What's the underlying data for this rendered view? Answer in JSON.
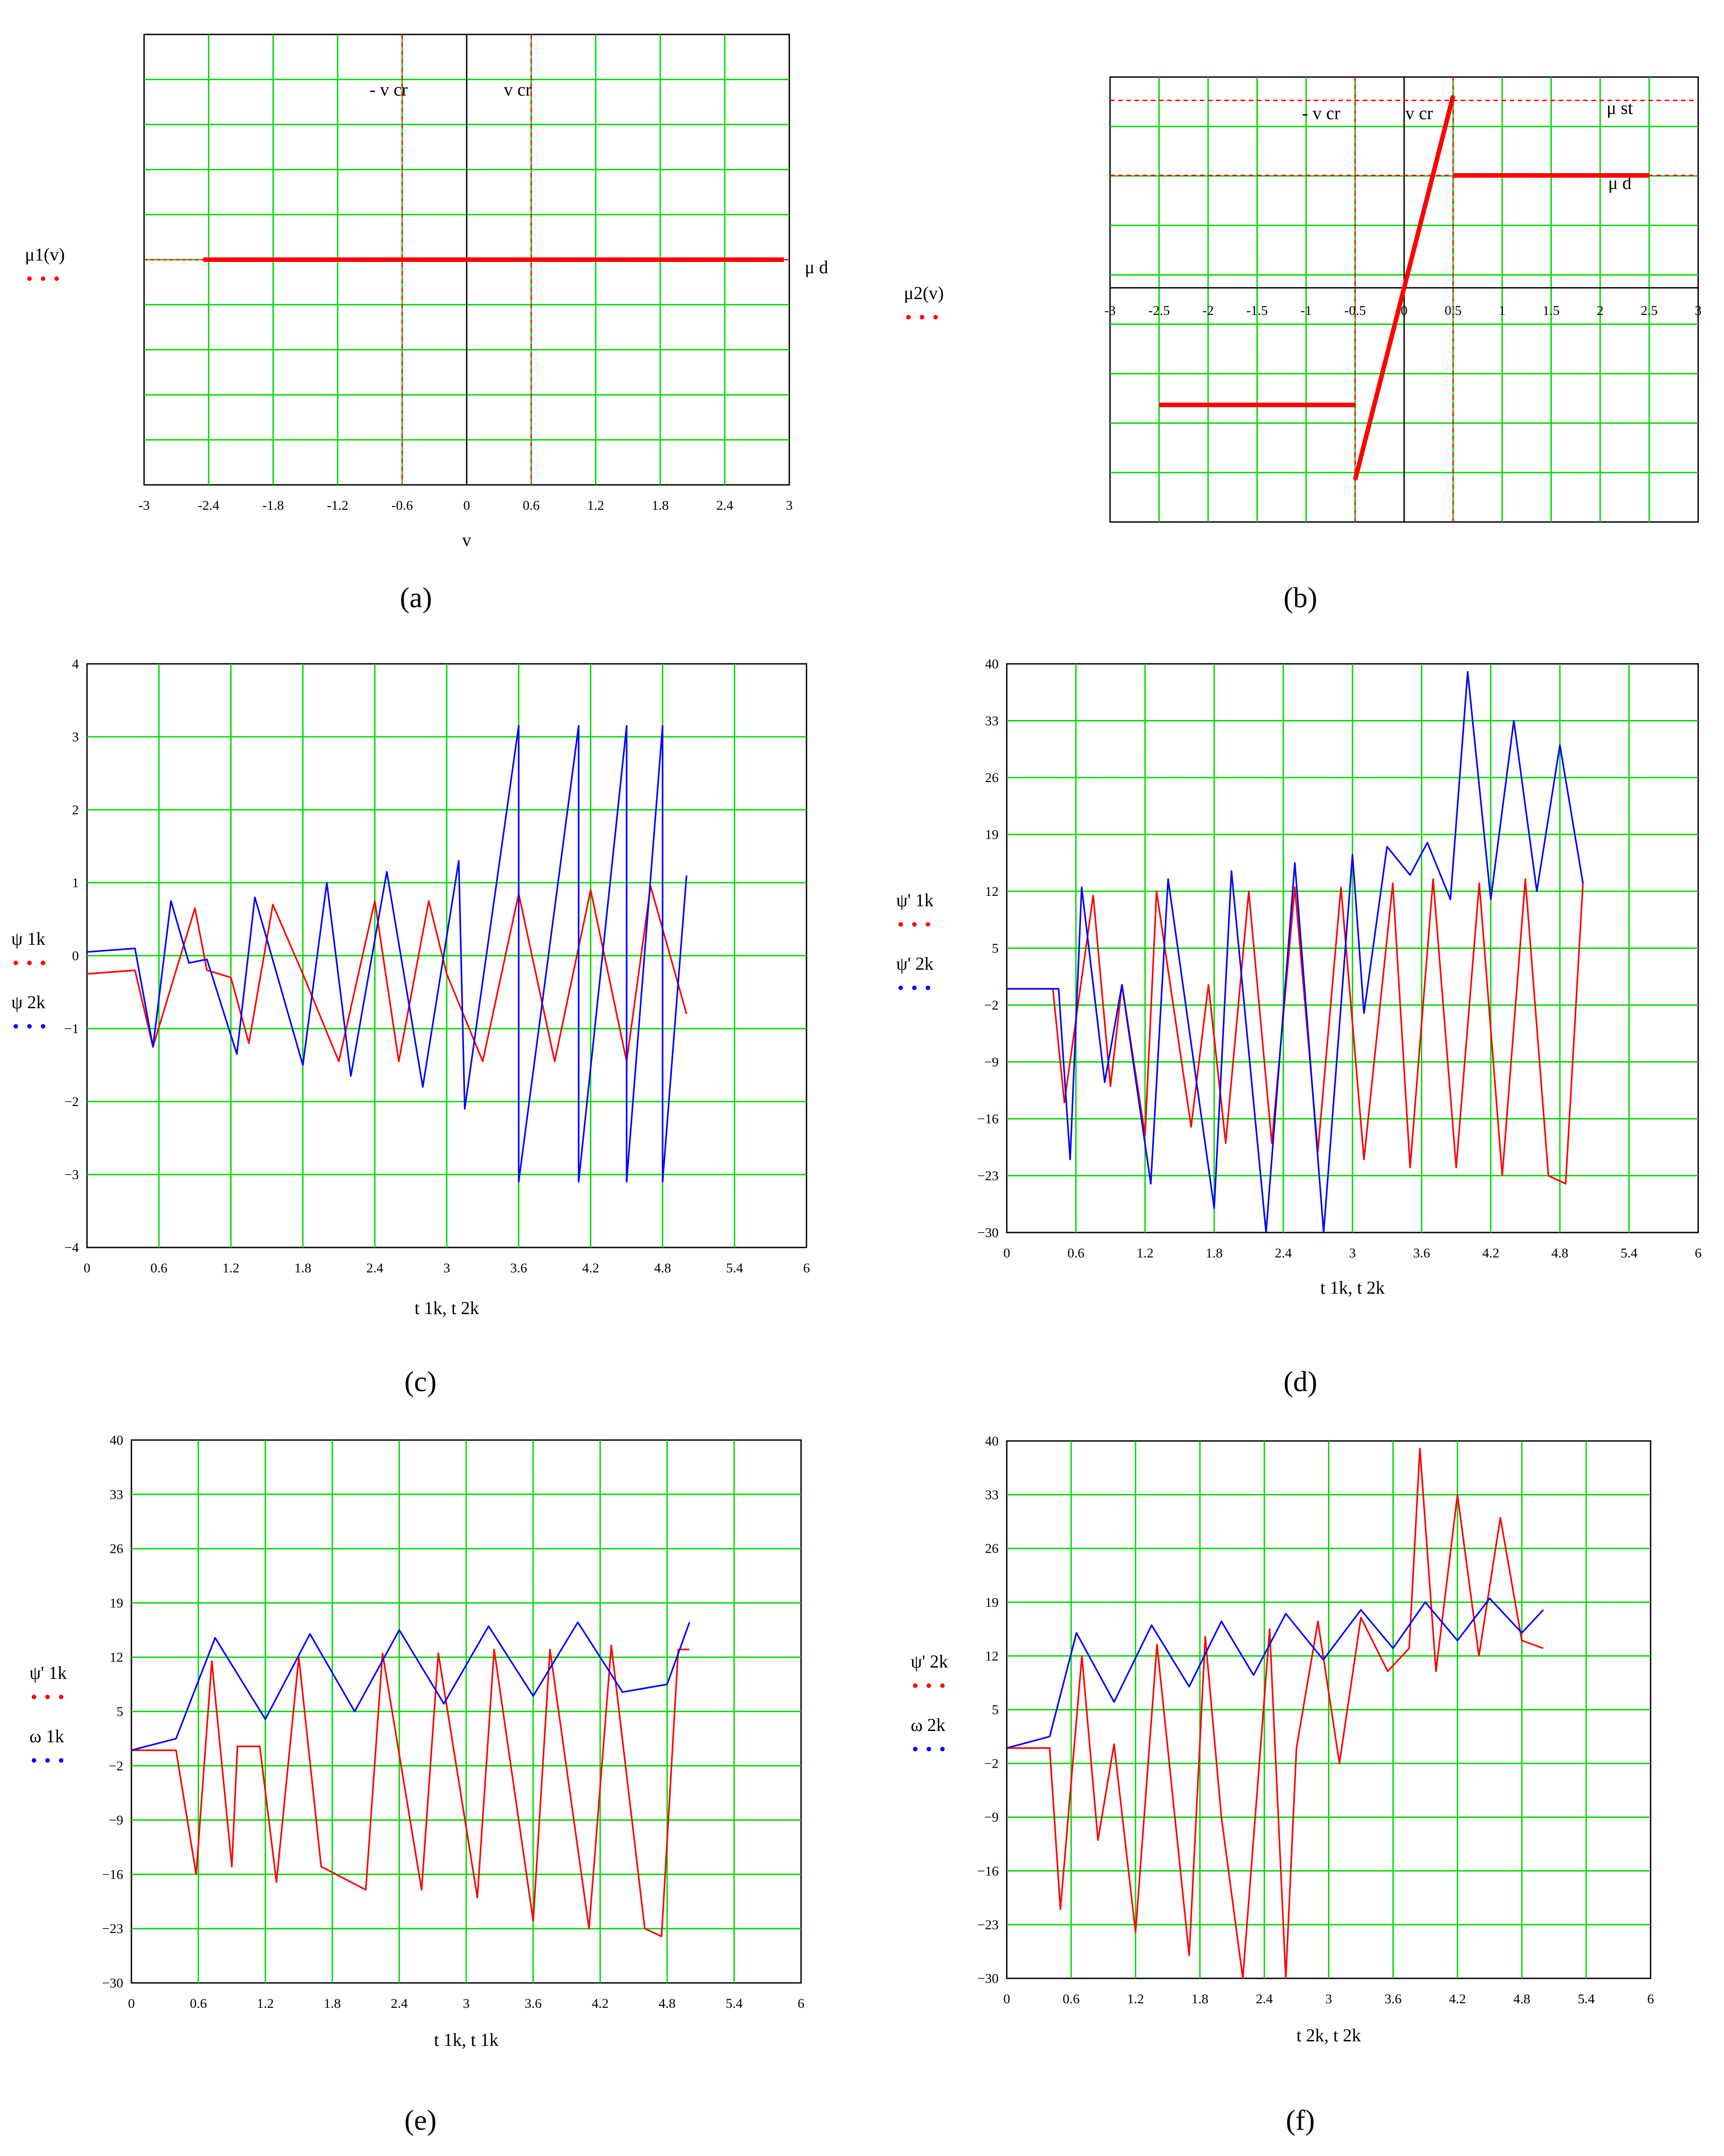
{
  "figure": {
    "captions": [
      "(a)",
      "(b)",
      "(c)",
      "(d)",
      "(e)",
      "(f)"
    ],
    "caption_letters": [
      "a",
      "b",
      "c",
      "d",
      "e",
      "f"
    ]
  },
  "chart_data": [
    {
      "id": "a",
      "type": "line",
      "caption": "(a)",
      "xlabel": "v",
      "legend": [
        {
          "label": "μ1(v)",
          "color": "#ff0000"
        }
      ],
      "xlim": [
        -3,
        3
      ],
      "ylim": [
        -5,
        5
      ],
      "xticks": [
        -3,
        -2.4,
        -1.8,
        -1.2,
        -0.6,
        0,
        0.6,
        1.2,
        1.8,
        2.4,
        3
      ],
      "xtick_labels": [
        "-3",
        "-2.4",
        "-1.8",
        "-1.2",
        "-0.6",
        "0",
        "0.6",
        "1.2",
        "1.8",
        "2.4",
        "3"
      ],
      "ygrid": [
        -5,
        -4,
        -3,
        -2,
        -1,
        0,
        1,
        2,
        3,
        4,
        5
      ],
      "vlines": [
        {
          "x": -0.6,
          "label": "- v cr"
        },
        {
          "x": 0.6,
          "label": "v cr"
        }
      ],
      "annotations": [
        {
          "text": "μ d",
          "x": 3.1,
          "y": 0
        }
      ],
      "series": [
        {
          "name": "μ1(v)",
          "color": "#ff0000",
          "x": [
            -3,
            -2.45,
            2.95,
            3.05
          ],
          "y": [
            0,
            0,
            0,
            0
          ],
          "segments": [
            [
              -2.45,
              2.95
            ]
          ]
        }
      ]
    },
    {
      "id": "b",
      "type": "line",
      "caption": "(b)",
      "legend": [
        {
          "label": "μ2(v)",
          "color": "#ff0000"
        }
      ],
      "xlim": [
        -3,
        3
      ],
      "ylim": [
        -5,
        4.5
      ],
      "xticks": [
        -3,
        -2.5,
        -2,
        -1.5,
        -1,
        -0.5,
        0,
        0.5,
        1,
        1.5,
        2,
        2.5,
        3
      ],
      "xtick_labels": [
        "-3",
        "-2.5",
        "-2",
        "-1.5",
        "-1",
        "-0.5",
        "0",
        "0.5",
        "1",
        "1.5",
        "2",
        "2.5",
        "3"
      ],
      "hlines": [
        {
          "y": 4,
          "label": "μ st"
        },
        {
          "y": 2.4,
          "label": "μ d"
        }
      ],
      "vlines": [
        {
          "x": -0.5,
          "label": "- v cr"
        },
        {
          "x": 0.5,
          "label": "v cr"
        }
      ],
      "series": [
        {
          "name": "μ2(v)",
          "color": "#ff0000",
          "x": [
            -2.5,
            -0.5,
            -0.5,
            0.5,
            0.5,
            2.5
          ],
          "y": [
            -2.5,
            -2.5,
            -4.1,
            4.1,
            2.4,
            2.4
          ]
        }
      ]
    },
    {
      "id": "c",
      "type": "line",
      "caption": "(c)",
      "xlabel": "t 1k, t 2k",
      "legend": [
        {
          "label": "ψ 1k",
          "color": "#ff0000"
        },
        {
          "label": "ψ 2k",
          "color": "#0000ff"
        }
      ],
      "xlim": [
        0,
        6
      ],
      "ylim": [
        -4,
        4
      ],
      "xticks": [
        0,
        0.6,
        1.2,
        1.8,
        2.4,
        3,
        3.6,
        4.2,
        4.8,
        5.4,
        6
      ],
      "xtick_labels": [
        "0",
        "0.6",
        "1.2",
        "1.8",
        "2.4",
        "3",
        "3.6",
        "4.2",
        "4.8",
        "5.4",
        "6"
      ],
      "yticks": [
        -4,
        -3,
        -2,
        -1,
        0,
        1,
        2,
        3,
        4
      ],
      "ytick_labels": [
        "−4",
        "−3",
        "−2",
        "−1",
        "0",
        "1",
        "2",
        "3",
        "4"
      ],
      "series": [
        {
          "name": "ψ 1k",
          "color": "#ff0000",
          "x": [
            0,
            0.4,
            0.55,
            0.9,
            1.0,
            1.2,
            1.35,
            1.55,
            1.8,
            2.1,
            2.4,
            2.6,
            2.85,
            3.0,
            3.3,
            3.6,
            3.9,
            4.2,
            4.5,
            4.7,
            5.0
          ],
          "y": [
            -0.25,
            -0.2,
            -1.25,
            0.65,
            -0.2,
            -0.3,
            -1.2,
            0.7,
            -0.25,
            -1.45,
            0.75,
            -1.45,
            0.75,
            -0.25,
            -1.45,
            0.85,
            -1.45,
            0.9,
            -1.45,
            0.95,
            -0.8
          ]
        },
        {
          "name": "ψ 2k",
          "color": "#0000ff",
          "x": [
            0,
            0.4,
            0.55,
            0.7,
            0.85,
            1.0,
            1.25,
            1.4,
            1.8,
            2.0,
            2.2,
            2.5,
            2.8,
            3.1,
            3.15,
            3.6,
            3.6,
            4.1,
            4.1,
            4.5,
            4.5,
            4.8,
            4.8,
            5.0
          ],
          "y": [
            0.05,
            0.1,
            -1.25,
            0.75,
            -0.1,
            -0.05,
            -1.35,
            0.8,
            -1.5,
            1.0,
            -1.65,
            1.15,
            -1.8,
            1.3,
            -2.1,
            3.15,
            -3.1,
            3.15,
            -3.1,
            3.15,
            -3.1,
            3.15,
            -3.1,
            1.1
          ]
        }
      ]
    },
    {
      "id": "d",
      "type": "line",
      "caption": "(d)",
      "xlabel": "t 1k, t 2k",
      "legend": [
        {
          "label": "ψ' 1k",
          "color": "#ff0000"
        },
        {
          "label": "ψ' 2k",
          "color": "#0000ff"
        }
      ],
      "xlim": [
        0,
        6
      ],
      "ylim": [
        -30,
        40
      ],
      "xticks": [
        0,
        0.6,
        1.2,
        1.8,
        2.4,
        3,
        3.6,
        4.2,
        4.8,
        5.4,
        6
      ],
      "xtick_labels": [
        "0",
        "0.6",
        "1.2",
        "1.8",
        "2.4",
        "3",
        "3.6",
        "4.2",
        "4.8",
        "5.4",
        "6"
      ],
      "yticks": [
        -30,
        -23,
        -16,
        -9,
        -2,
        5,
        12,
        19,
        26,
        33,
        40
      ],
      "ytick_labels": [
        "−30",
        "−23",
        "−16",
        "−9",
        "−2",
        "5",
        "12",
        "19",
        "26",
        "33",
        "40"
      ],
      "series": [
        {
          "name": "ψ' 1k",
          "color": "#ff0000",
          "x": [
            0,
            0.4,
            0.5,
            0.75,
            0.9,
            1.0,
            1.2,
            1.3,
            1.6,
            1.75,
            1.9,
            2.1,
            2.3,
            2.5,
            2.7,
            2.9,
            3.1,
            3.35,
            3.5,
            3.7,
            3.9,
            4.1,
            4.3,
            4.5,
            4.7,
            4.85,
            5.0
          ],
          "y": [
            0,
            0,
            -14,
            11.5,
            -12,
            0.5,
            -18,
            12,
            -17,
            0.5,
            -19,
            12,
            -19,
            12.5,
            -20,
            12.5,
            -21,
            13,
            -22,
            13.5,
            -22,
            13,
            -23,
            13.5,
            -23,
            -24,
            13
          ]
        },
        {
          "name": "ψ' 2k",
          "color": "#0000ff",
          "x": [
            0,
            0.45,
            0.55,
            0.65,
            0.85,
            1.0,
            1.25,
            1.4,
            1.8,
            1.95,
            2.25,
            2.5,
            2.75,
            3.0,
            3.1,
            3.3,
            3.5,
            3.65,
            3.85,
            4.0,
            4.2,
            4.4,
            4.6,
            4.8,
            5.0
          ],
          "y": [
            0,
            0,
            -21,
            12.5,
            -11.5,
            0.5,
            -24,
            13.5,
            -27,
            14.5,
            -30,
            15.5,
            -30,
            16.5,
            -3,
            17.5,
            14,
            18,
            11,
            39,
            11,
            33,
            12,
            30,
            13
          ]
        }
      ]
    },
    {
      "id": "e",
      "type": "line",
      "caption": "(e)",
      "xlabel": "t 1k, t 1k",
      "legend": [
        {
          "label": "ψ' 1k",
          "color": "#ff0000"
        },
        {
          "label": "ω 1k",
          "color": "#0000ff"
        }
      ],
      "xlim": [
        0,
        6
      ],
      "ylim": [
        -30,
        40
      ],
      "xticks": [
        0,
        0.6,
        1.2,
        1.8,
        2.4,
        3,
        3.6,
        4.2,
        4.8,
        5.4,
        6
      ],
      "xtick_labels": [
        "0",
        "0.6",
        "1.2",
        "1.8",
        "2.4",
        "3",
        "3.6",
        "4.2",
        "4.8",
        "5.4",
        "6"
      ],
      "yticks": [
        -30,
        -23,
        -16,
        -9,
        -2,
        5,
        12,
        19,
        26,
        33,
        40
      ],
      "ytick_labels": [
        "−30",
        "−23",
        "−16",
        "−9",
        "−2",
        "5",
        "12",
        "19",
        "26",
        "33",
        "40"
      ],
      "series": [
        {
          "name": "ψ' 1k",
          "color": "#ff0000",
          "x": [
            0,
            0.4,
            0.58,
            0.72,
            0.9,
            0.95,
            1.15,
            1.3,
            1.5,
            1.7,
            2.1,
            2.25,
            2.6,
            2.75,
            3.1,
            3.25,
            3.6,
            3.75,
            4.1,
            4.3,
            4.6,
            4.75,
            4.9,
            5.0
          ],
          "y": [
            0,
            0,
            -16,
            11.5,
            -15,
            0.5,
            0.5,
            -17,
            12,
            -15,
            -18,
            12.5,
            -18,
            12.5,
            -19,
            13,
            -22,
            13,
            -23,
            13.5,
            -23,
            -24,
            13,
            13
          ]
        },
        {
          "name": "ω 1k",
          "color": "#0000ff",
          "x": [
            0,
            0.4,
            0.75,
            1.2,
            1.6,
            2.0,
            2.4,
            2.8,
            3.2,
            3.6,
            4.0,
            4.4,
            4.8,
            5.0
          ],
          "y": [
            0,
            1.5,
            14.5,
            4,
            15,
            5,
            15.5,
            6,
            16,
            7,
            16.5,
            7.5,
            8.5,
            16.5
          ]
        }
      ]
    },
    {
      "id": "f",
      "type": "line",
      "caption": "(f)",
      "xlabel": "t 2k, t 2k",
      "legend": [
        {
          "label": "ψ' 2k",
          "color": "#ff0000"
        },
        {
          "label": "ω 2k",
          "color": "#0000ff"
        }
      ],
      "xlim": [
        0,
        6
      ],
      "ylim": [
        -30,
        40
      ],
      "xticks": [
        0,
        0.6,
        1.2,
        1.8,
        2.4,
        3,
        3.6,
        4.2,
        4.8,
        5.4,
        6
      ],
      "xtick_labels": [
        "0",
        "0.6",
        "1.2",
        "1.8",
        "2.4",
        "3",
        "3.6",
        "4.2",
        "4.8",
        "5.4",
        "6"
      ],
      "yticks": [
        -30,
        -23,
        -16,
        -9,
        -2,
        5,
        12,
        19,
        26,
        33,
        40
      ],
      "ytick_labels": [
        "−30",
        "−23",
        "−16",
        "−9",
        "−2",
        "5",
        "12",
        "19",
        "26",
        "33",
        "40"
      ],
      "series": [
        {
          "name": "ψ' 2k",
          "color": "#ff0000",
          "x": [
            0,
            0.4,
            0.5,
            0.7,
            0.85,
            1.0,
            1.2,
            1.4,
            1.7,
            1.85,
            2.0,
            2.2,
            2.45,
            2.6,
            2.7,
            2.9,
            3.1,
            3.3,
            3.55,
            3.75,
            3.85,
            4.0,
            4.2,
            4.4,
            4.6,
            4.8,
            5.0
          ],
          "y": [
            0,
            0,
            -21,
            12,
            -12,
            0.5,
            -24,
            13.5,
            -27,
            14.5,
            -9,
            -30,
            15.5,
            -30,
            0,
            16.5,
            -2,
            17,
            10,
            13,
            39,
            10,
            33,
            12,
            30,
            14,
            13
          ]
        },
        {
          "name": "ω 2k",
          "color": "#0000ff",
          "x": [
            0,
            0.4,
            0.65,
            1.0,
            1.35,
            1.7,
            2.0,
            2.3,
            2.6,
            2.95,
            3.3,
            3.6,
            3.9,
            4.2,
            4.5,
            4.8,
            5.0
          ],
          "y": [
            0,
            1.5,
            15,
            6,
            16,
            8,
            16.5,
            9.5,
            17.5,
            11.5,
            18,
            13,
            19,
            14,
            19.5,
            15,
            18
          ]
        }
      ]
    }
  ]
}
